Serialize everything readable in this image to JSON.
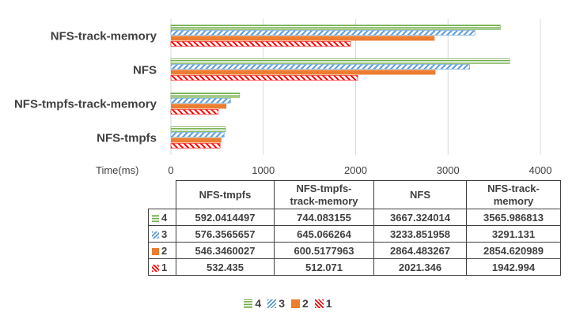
{
  "chart_data": {
    "type": "bar",
    "orientation": "horizontal",
    "categories": [
      "NFS-tmpfs",
      "NFS-tmpfs-track-memory",
      "NFS",
      "NFS-track-memory"
    ],
    "table_headers": [
      "NFS-tmpfs",
      "NFS-tmpfs-\ntrack-memory",
      "NFS",
      "NFS-track-\nmemory"
    ],
    "series": [
      {
        "name": "4",
        "values": [
          592.0414497,
          744.083155,
          3667.324014,
          3565.986813
        ],
        "display": [
          "592.0414497",
          "744.083155",
          "3667.324014",
          "3565.986813"
        ],
        "color": "#70ad47",
        "pattern": "horizontal-lines"
      },
      {
        "name": "3",
        "values": [
          576.3565657,
          645.066264,
          3233.851958,
          3291.131
        ],
        "display": [
          "576.3565657",
          "645.066264",
          "3233.851958",
          "3291.131"
        ],
        "color": "#5b9bd5",
        "pattern": "diagonal-stripes"
      },
      {
        "name": "2",
        "values": [
          546.3460027,
          600.5177963,
          2864.483267,
          2854.620989
        ],
        "display": [
          "546.3460027",
          "600.5177963",
          "2864.483267",
          "2854.620989"
        ],
        "color": "#ed7d31",
        "pattern": "solid"
      },
      {
        "name": "1",
        "values": [
          532.435,
          512.071,
          2021.346,
          1942.994
        ],
        "display": [
          "532.435",
          "512.071",
          "2021.346",
          "1942.994"
        ],
        "color": "#ff0000",
        "pattern": "diagonal-stripes-reverse"
      }
    ],
    "xlabel": "Time(ms)",
    "xlim": [
      0,
      4000
    ],
    "xticks": [
      0,
      1000,
      2000,
      3000,
      4000
    ],
    "grid": true,
    "legend_position": "bottom",
    "legend_order": [
      "4",
      "3",
      "2",
      "1"
    ],
    "has_data_table": true
  }
}
